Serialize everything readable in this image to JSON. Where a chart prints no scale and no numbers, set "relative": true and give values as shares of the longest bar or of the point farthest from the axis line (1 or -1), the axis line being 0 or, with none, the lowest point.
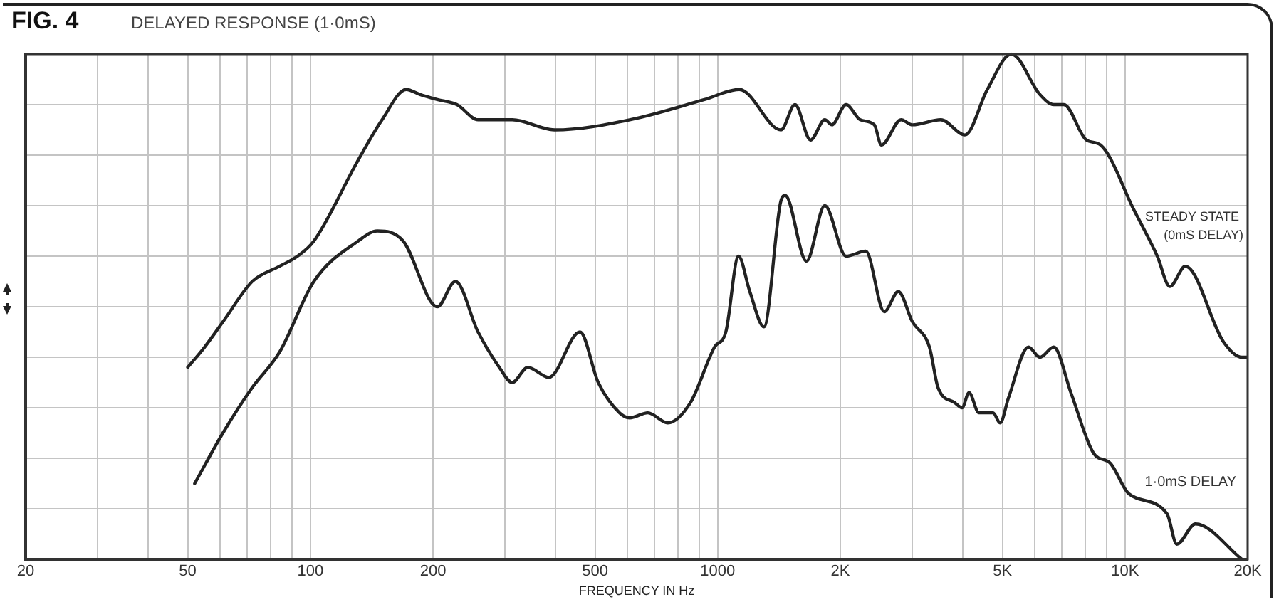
{
  "chart_data": {
    "type": "line",
    "title": "FIG. 4",
    "subtitle": "DELAYED RESPONSE (1·0mS)",
    "xlabel": "FREQUENCY IN Hz",
    "log": "x",
    "relative": true,
    "grid": true,
    "legend": false,
    "tick_labels": "x",
    "marker": "none",
    "line_style": "solid",
    "xlim": [
      20,
      20000
    ],
    "xticks": [
      20,
      {
        "value": 30,
        "label": null
      },
      {
        "value": 40,
        "label": null
      },
      50,
      {
        "value": 60,
        "label": null
      },
      {
        "value": 70,
        "label": null
      },
      {
        "value": 80,
        "label": null
      },
      {
        "value": 90,
        "label": null
      },
      100,
      200,
      {
        "value": 300,
        "label": null
      },
      {
        "value": 400,
        "label": null
      },
      500,
      {
        "value": 600,
        "label": null
      },
      {
        "value": 700,
        "label": null
      },
      {
        "value": 800,
        "label": null
      },
      {
        "value": 900,
        "label": null
      },
      1000,
      {
        "value": 2000,
        "label": "2K"
      },
      {
        "value": 3000,
        "label": null
      },
      {
        "value": 4000,
        "label": null
      },
      {
        "value": 5000,
        "label": "5K"
      },
      {
        "value": 6000,
        "label": null
      },
      {
        "value": 7000,
        "label": null
      },
      {
        "value": 8000,
        "label": null
      },
      {
        "value": 9000,
        "label": null
      },
      {
        "value": 10000,
        "label": "10K"
      },
      {
        "value": 20000,
        "label": "20K"
      }
    ],
    "series": [
      {
        "name": "STEADY STATE (0mS DELAY)",
        "color": "#222222",
        "x": [
          50,
          55,
          61,
          72,
          84,
          93,
          102,
          131,
          150,
          172,
          186,
          205,
          229,
          258,
          313,
          398,
          608,
          928,
          1130,
          1430,
          1548,
          1690,
          1832,
          1906,
          2066,
          2238,
          2424,
          2523,
          2820,
          3006,
          3530,
          4045,
          4592,
          5260,
          6180,
          6685,
          7076,
          8036,
          8710,
          10540,
          12000,
          12880,
          14060,
          17460,
          19360,
          20000
        ],
        "values": [
          0.38,
          0.42,
          0.47,
          0.55,
          0.58,
          0.6,
          0.63,
          0.79,
          0.87,
          0.93,
          0.92,
          0.91,
          0.9,
          0.87,
          0.87,
          0.85,
          0.87,
          0.91,
          0.93,
          0.85,
          0.9,
          0.83,
          0.87,
          0.86,
          0.9,
          0.87,
          0.86,
          0.82,
          0.87,
          0.86,
          0.87,
          0.84,
          0.93,
          1,
          0.92,
          0.9,
          0.9,
          0.83,
          0.82,
          0.69,
          0.6,
          0.54,
          0.58,
          0.43,
          0.4,
          0.4
        ]
      },
      {
        "name": "1·0mS DELAY",
        "color": "#222222",
        "x": [
          52,
          61,
          72,
          84,
          102,
          131,
          146,
          169,
          205,
          227,
          258,
          291,
          313,
          342,
          385,
          459,
          509,
          574,
          608,
          674,
          754,
          857,
          982,
          1047,
          1125,
          1199,
          1299,
          1430,
          1465,
          1652,
          1832,
          2066,
          2310,
          2564,
          2776,
          3006,
          3310,
          3474,
          3820,
          3980,
          4140,
          4377,
          4742,
          4935,
          5177,
          5794,
          6180,
          6685,
          7362,
          8372,
          9205,
          10210,
          12680,
          13400,
          14890,
          19360
        ],
        "values": [
          0.15,
          0.25,
          0.34,
          0.41,
          0.55,
          0.63,
          0.65,
          0.63,
          0.5,
          0.55,
          0.45,
          0.38,
          0.35,
          0.38,
          0.36,
          0.45,
          0.35,
          0.29,
          0.28,
          0.29,
          0.27,
          0.31,
          0.42,
          0.45,
          0.6,
          0.53,
          0.46,
          0.71,
          0.72,
          0.59,
          0.7,
          0.6,
          0.61,
          0.49,
          0.53,
          0.47,
          0.42,
          0.34,
          0.31,
          0.3,
          0.33,
          0.29,
          0.29,
          0.27,
          0.32,
          0.42,
          0.4,
          0.42,
          0.33,
          0.21,
          0.19,
          0.13,
          0.09,
          0.03,
          0.07,
          0
        ]
      }
    ]
  }
}
